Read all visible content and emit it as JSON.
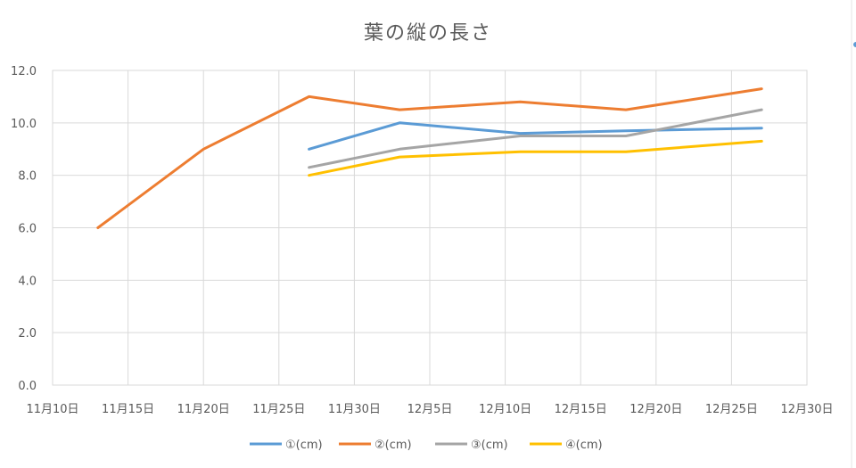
{
  "chart_data": {
    "type": "line",
    "title": "葉の縦の長さ",
    "xlabel": "",
    "ylabel": "",
    "x_axis_kind": "date",
    "xlim": [
      "11-10",
      "12-30"
    ],
    "ylim": [
      0,
      12
    ],
    "x_ticks": [
      {
        "date": "11-10",
        "label": "11月10日"
      },
      {
        "date": "11-15",
        "label": "11月15日"
      },
      {
        "date": "11-20",
        "label": "11月20日"
      },
      {
        "date": "11-25",
        "label": "11月25日"
      },
      {
        "date": "11-30",
        "label": "11月30日"
      },
      {
        "date": "12-05",
        "label": "12月5日"
      },
      {
        "date": "12-10",
        "label": "12月10日"
      },
      {
        "date": "12-15",
        "label": "12月15日"
      },
      {
        "date": "12-20",
        "label": "12月20日"
      },
      {
        "date": "12-25",
        "label": "12月25日"
      },
      {
        "date": "12-30",
        "label": "12月30日"
      }
    ],
    "y_ticks": [
      {
        "value": 0,
        "label": "0.0"
      },
      {
        "value": 2,
        "label": "2.0"
      },
      {
        "value": 4,
        "label": "4.0"
      },
      {
        "value": 6,
        "label": "6.0"
      },
      {
        "value": 8,
        "label": "8.0"
      },
      {
        "value": 10,
        "label": "10.0"
      },
      {
        "value": 12,
        "label": "12.0"
      }
    ],
    "grid": true,
    "legend_position": "bottom",
    "series": [
      {
        "name": "①(cm)",
        "color": "#5b9bd5",
        "points": [
          {
            "x": "11-27",
            "y": 9.0
          },
          {
            "x": "12-03",
            "y": 10.0
          },
          {
            "x": "12-11",
            "y": 9.6
          },
          {
            "x": "12-18",
            "y": 9.7
          },
          {
            "x": "12-27",
            "y": 9.8
          }
        ]
      },
      {
        "name": "②(cm)",
        "color": "#ed7d31",
        "points": [
          {
            "x": "11-13",
            "y": 6.0
          },
          {
            "x": "11-20",
            "y": 9.0
          },
          {
            "x": "11-27",
            "y": 11.0
          },
          {
            "x": "12-03",
            "y": 10.5
          },
          {
            "x": "12-11",
            "y": 10.8
          },
          {
            "x": "12-18",
            "y": 10.5
          },
          {
            "x": "12-27",
            "y": 11.3
          }
        ]
      },
      {
        "name": "③(cm)",
        "color": "#a5a5a5",
        "points": [
          {
            "x": "11-27",
            "y": 8.3
          },
          {
            "x": "12-03",
            "y": 9.0
          },
          {
            "x": "12-11",
            "y": 9.5
          },
          {
            "x": "12-18",
            "y": 9.5
          },
          {
            "x": "12-27",
            "y": 10.5
          }
        ]
      },
      {
        "name": "④(cm)",
        "color": "#ffc000",
        "points": [
          {
            "x": "11-27",
            "y": 8.0
          },
          {
            "x": "12-03",
            "y": 8.7
          },
          {
            "x": "12-11",
            "y": 8.9
          },
          {
            "x": "12-18",
            "y": 8.9
          },
          {
            "x": "12-27",
            "y": 9.3
          }
        ]
      }
    ]
  }
}
